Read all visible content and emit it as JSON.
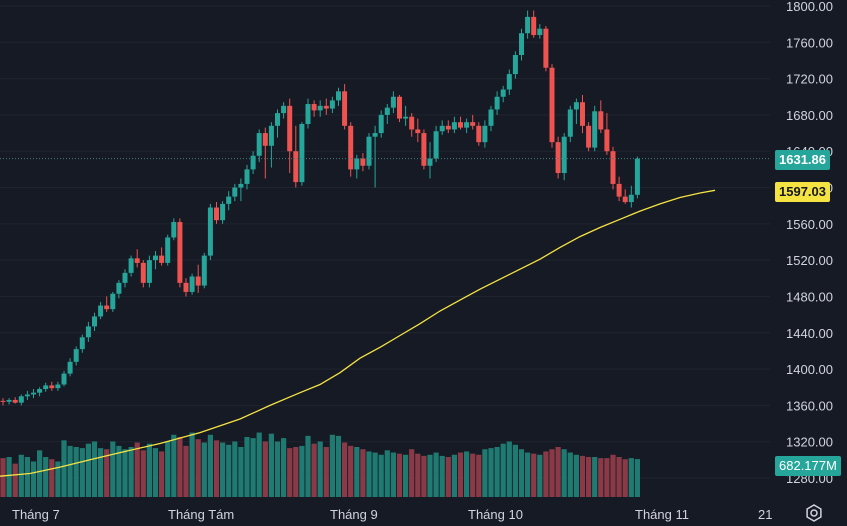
{
  "chart_data": {
    "type": "candlestick",
    "y_axis": {
      "ticks": [
        "1800.00",
        "1760.00",
        "1720.00",
        "1680.00",
        "1640.00",
        "1600.00",
        "1560.00",
        "1520.00",
        "1480.00",
        "1440.00",
        "1400.00",
        "1360.00",
        "1320.00",
        "1280.00"
      ],
      "range": [
        1270,
        1802
      ]
    },
    "x_axis": {
      "ticks": [
        "Tháng 7",
        "Tháng Tám",
        "Tháng 9",
        "Tháng 10",
        "Tháng 11",
        "21"
      ]
    },
    "last_price_label": "1631.86",
    "ma_label": "1597.03",
    "volume_label": "682.177M",
    "colors": {
      "up": "#26a69a",
      "down": "#ef5350",
      "up_vol": "#1f7a71",
      "down_vol": "#8a3a46",
      "ma": "#f5e342",
      "background": "#161a25"
    },
    "candles": [
      {
        "o": 1365,
        "h": 1368,
        "l": 1360,
        "c": 1364
      },
      {
        "o": 1364,
        "h": 1368,
        "l": 1361,
        "c": 1366
      },
      {
        "o": 1366,
        "h": 1369,
        "l": 1362,
        "c": 1363
      },
      {
        "o": 1363,
        "h": 1372,
        "l": 1360,
        "c": 1370
      },
      {
        "o": 1370,
        "h": 1376,
        "l": 1366,
        "c": 1372
      },
      {
        "o": 1372,
        "h": 1378,
        "l": 1368,
        "c": 1374
      },
      {
        "o": 1374,
        "h": 1380,
        "l": 1370,
        "c": 1378
      },
      {
        "o": 1378,
        "h": 1385,
        "l": 1375,
        "c": 1382
      },
      {
        "o": 1382,
        "h": 1386,
        "l": 1376,
        "c": 1379
      },
      {
        "o": 1379,
        "h": 1386,
        "l": 1376,
        "c": 1383
      },
      {
        "o": 1383,
        "h": 1398,
        "l": 1381,
        "c": 1395
      },
      {
        "o": 1395,
        "h": 1412,
        "l": 1392,
        "c": 1408
      },
      {
        "o": 1408,
        "h": 1425,
        "l": 1404,
        "c": 1422
      },
      {
        "o": 1422,
        "h": 1438,
        "l": 1418,
        "c": 1435
      },
      {
        "o": 1435,
        "h": 1452,
        "l": 1430,
        "c": 1447
      },
      {
        "o": 1447,
        "h": 1462,
        "l": 1442,
        "c": 1458
      },
      {
        "o": 1458,
        "h": 1474,
        "l": 1455,
        "c": 1470
      },
      {
        "o": 1470,
        "h": 1480,
        "l": 1463,
        "c": 1466
      },
      {
        "o": 1466,
        "h": 1485,
        "l": 1463,
        "c": 1483
      },
      {
        "o": 1483,
        "h": 1498,
        "l": 1478,
        "c": 1495
      },
      {
        "o": 1495,
        "h": 1510,
        "l": 1490,
        "c": 1506
      },
      {
        "o": 1506,
        "h": 1525,
        "l": 1502,
        "c": 1522
      },
      {
        "o": 1522,
        "h": 1532,
        "l": 1512,
        "c": 1517
      },
      {
        "o": 1517,
        "h": 1520,
        "l": 1490,
        "c": 1495
      },
      {
        "o": 1495,
        "h": 1525,
        "l": 1490,
        "c": 1520
      },
      {
        "o": 1520,
        "h": 1530,
        "l": 1510,
        "c": 1525
      },
      {
        "o": 1525,
        "h": 1534,
        "l": 1514,
        "c": 1517
      },
      {
        "o": 1517,
        "h": 1548,
        "l": 1514,
        "c": 1545
      },
      {
        "o": 1545,
        "h": 1566,
        "l": 1542,
        "c": 1562
      },
      {
        "o": 1562,
        "h": 1566,
        "l": 1490,
        "c": 1495
      },
      {
        "o": 1495,
        "h": 1500,
        "l": 1480,
        "c": 1485
      },
      {
        "o": 1485,
        "h": 1505,
        "l": 1482,
        "c": 1502
      },
      {
        "o": 1502,
        "h": 1515,
        "l": 1484,
        "c": 1492
      },
      {
        "o": 1492,
        "h": 1528,
        "l": 1489,
        "c": 1525
      },
      {
        "o": 1525,
        "h": 1582,
        "l": 1520,
        "c": 1578
      },
      {
        "o": 1578,
        "h": 1584,
        "l": 1560,
        "c": 1564
      },
      {
        "o": 1564,
        "h": 1585,
        "l": 1560,
        "c": 1582
      },
      {
        "o": 1582,
        "h": 1596,
        "l": 1575,
        "c": 1590
      },
      {
        "o": 1590,
        "h": 1604,
        "l": 1585,
        "c": 1600
      },
      {
        "o": 1600,
        "h": 1610,
        "l": 1585,
        "c": 1604
      },
      {
        "o": 1604,
        "h": 1625,
        "l": 1598,
        "c": 1620
      },
      {
        "o": 1620,
        "h": 1640,
        "l": 1615,
        "c": 1635
      },
      {
        "o": 1635,
        "h": 1664,
        "l": 1628,
        "c": 1660
      },
      {
        "o": 1660,
        "h": 1666,
        "l": 1610,
        "c": 1646
      },
      {
        "o": 1646,
        "h": 1672,
        "l": 1622,
        "c": 1668
      },
      {
        "o": 1668,
        "h": 1686,
        "l": 1655,
        "c": 1682
      },
      {
        "o": 1682,
        "h": 1694,
        "l": 1676,
        "c": 1690
      },
      {
        "o": 1690,
        "h": 1698,
        "l": 1616,
        "c": 1640
      },
      {
        "o": 1640,
        "h": 1668,
        "l": 1600,
        "c": 1606
      },
      {
        "o": 1606,
        "h": 1672,
        "l": 1602,
        "c": 1670
      },
      {
        "o": 1670,
        "h": 1698,
        "l": 1665,
        "c": 1692
      },
      {
        "o": 1692,
        "h": 1696,
        "l": 1678,
        "c": 1685
      },
      {
        "o": 1685,
        "h": 1696,
        "l": 1678,
        "c": 1690
      },
      {
        "o": 1690,
        "h": 1698,
        "l": 1680,
        "c": 1687
      },
      {
        "o": 1687,
        "h": 1700,
        "l": 1682,
        "c": 1696
      },
      {
        "o": 1696,
        "h": 1710,
        "l": 1690,
        "c": 1706
      },
      {
        "o": 1706,
        "h": 1714,
        "l": 1664,
        "c": 1668
      },
      {
        "o": 1668,
        "h": 1672,
        "l": 1612,
        "c": 1620
      },
      {
        "o": 1620,
        "h": 1636,
        "l": 1610,
        "c": 1632
      },
      {
        "o": 1632,
        "h": 1638,
        "l": 1618,
        "c": 1624
      },
      {
        "o": 1624,
        "h": 1660,
        "l": 1620,
        "c": 1656
      },
      {
        "o": 1656,
        "h": 1668,
        "l": 1600,
        "c": 1660
      },
      {
        "o": 1660,
        "h": 1685,
        "l": 1655,
        "c": 1680
      },
      {
        "o": 1680,
        "h": 1692,
        "l": 1670,
        "c": 1688
      },
      {
        "o": 1688,
        "h": 1706,
        "l": 1682,
        "c": 1700
      },
      {
        "o": 1700,
        "h": 1702,
        "l": 1672,
        "c": 1676
      },
      {
        "o": 1676,
        "h": 1690,
        "l": 1668,
        "c": 1678
      },
      {
        "o": 1678,
        "h": 1682,
        "l": 1656,
        "c": 1664
      },
      {
        "o": 1664,
        "h": 1676,
        "l": 1650,
        "c": 1660
      },
      {
        "o": 1660,
        "h": 1664,
        "l": 1620,
        "c": 1624
      },
      {
        "o": 1624,
        "h": 1650,
        "l": 1610,
        "c": 1632
      },
      {
        "o": 1632,
        "h": 1668,
        "l": 1628,
        "c": 1662
      },
      {
        "o": 1662,
        "h": 1674,
        "l": 1658,
        "c": 1668
      },
      {
        "o": 1668,
        "h": 1674,
        "l": 1660,
        "c": 1664
      },
      {
        "o": 1664,
        "h": 1678,
        "l": 1660,
        "c": 1672
      },
      {
        "o": 1672,
        "h": 1678,
        "l": 1664,
        "c": 1666
      },
      {
        "o": 1666,
        "h": 1676,
        "l": 1660,
        "c": 1672
      },
      {
        "o": 1672,
        "h": 1680,
        "l": 1664,
        "c": 1668
      },
      {
        "o": 1668,
        "h": 1672,
        "l": 1646,
        "c": 1650
      },
      {
        "o": 1650,
        "h": 1674,
        "l": 1644,
        "c": 1668
      },
      {
        "o": 1668,
        "h": 1690,
        "l": 1662,
        "c": 1686
      },
      {
        "o": 1686,
        "h": 1706,
        "l": 1680,
        "c": 1700
      },
      {
        "o": 1700,
        "h": 1712,
        "l": 1694,
        "c": 1708
      },
      {
        "o": 1708,
        "h": 1730,
        "l": 1702,
        "c": 1725
      },
      {
        "o": 1725,
        "h": 1750,
        "l": 1720,
        "c": 1746
      },
      {
        "o": 1746,
        "h": 1775,
        "l": 1740,
        "c": 1770
      },
      {
        "o": 1770,
        "h": 1795,
        "l": 1764,
        "c": 1788
      },
      {
        "o": 1788,
        "h": 1795,
        "l": 1765,
        "c": 1768
      },
      {
        "o": 1768,
        "h": 1780,
        "l": 1764,
        "c": 1775
      },
      {
        "o": 1775,
        "h": 1778,
        "l": 1728,
        "c": 1732
      },
      {
        "o": 1732,
        "h": 1736,
        "l": 1644,
        "c": 1650
      },
      {
        "o": 1650,
        "h": 1656,
        "l": 1610,
        "c": 1616
      },
      {
        "o": 1616,
        "h": 1660,
        "l": 1608,
        "c": 1656
      },
      {
        "o": 1656,
        "h": 1690,
        "l": 1650,
        "c": 1686
      },
      {
        "o": 1686,
        "h": 1698,
        "l": 1670,
        "c": 1694
      },
      {
        "o": 1694,
        "h": 1702,
        "l": 1660,
        "c": 1668
      },
      {
        "o": 1668,
        "h": 1672,
        "l": 1640,
        "c": 1644
      },
      {
        "o": 1644,
        "h": 1690,
        "l": 1640,
        "c": 1684
      },
      {
        "o": 1684,
        "h": 1696,
        "l": 1660,
        "c": 1664
      },
      {
        "o": 1664,
        "h": 1682,
        "l": 1636,
        "c": 1640
      },
      {
        "o": 1640,
        "h": 1645,
        "l": 1598,
        "c": 1604
      },
      {
        "o": 1604,
        "h": 1612,
        "l": 1585,
        "c": 1590
      },
      {
        "o": 1590,
        "h": 1598,
        "l": 1582,
        "c": 1584
      },
      {
        "o": 1584,
        "h": 1602,
        "l": 1578,
        "c": 1592
      },
      {
        "o": 1592,
        "h": 1634,
        "l": 1588,
        "c": 1631.86
      }
    ],
    "volume_scale_M": 1800,
    "volumes_M": [
      700,
      720,
      600,
      760,
      720,
      640,
      840,
      720,
      680,
      640,
      1020,
      920,
      900,
      880,
      960,
      1000,
      880,
      860,
      1000,
      920,
      860,
      900,
      980,
      840,
      960,
      880,
      820,
      1000,
      1120,
      1080,
      920,
      1160,
      1040,
      980,
      1120,
      1020,
      980,
      940,
      1000,
      900,
      1080,
      1060,
      1160,
      1000,
      1140,
      1000,
      1060,
      880,
      900,
      920,
      1100,
      960,
      1000,
      900,
      1120,
      1100,
      980,
      920,
      900,
      860,
      820,
      800,
      760,
      840,
      800,
      780,
      760,
      860,
      780,
      740,
      760,
      800,
      740,
      720,
      760,
      800,
      820,
      780,
      760,
      860,
      880,
      900,
      960,
      1000,
      940,
      860,
      800,
      780,
      760,
      820,
      860,
      900,
      860,
      800,
      760,
      740,
      720,
      720,
      700,
      700,
      760,
      720,
      680,
      700,
      682.177
    ],
    "ma": [
      [
        0,
        1282
      ],
      [
        30,
        1285
      ],
      [
        60,
        1292
      ],
      [
        90,
        1300
      ],
      [
        120,
        1308
      ],
      [
        160,
        1318
      ],
      [
        200,
        1330
      ],
      [
        240,
        1345
      ],
      [
        270,
        1360
      ],
      [
        300,
        1374
      ],
      [
        320,
        1383
      ],
      [
        340,
        1396
      ],
      [
        360,
        1412
      ],
      [
        380,
        1424
      ],
      [
        400,
        1437
      ],
      [
        420,
        1450
      ],
      [
        440,
        1464
      ],
      [
        460,
        1476
      ],
      [
        480,
        1488
      ],
      [
        500,
        1499
      ],
      [
        520,
        1510
      ],
      [
        540,
        1521
      ],
      [
        560,
        1534
      ],
      [
        580,
        1546
      ],
      [
        600,
        1556
      ],
      [
        620,
        1565
      ],
      [
        640,
        1574
      ],
      [
        660,
        1582
      ],
      [
        680,
        1589
      ],
      [
        700,
        1594
      ],
      [
        715,
        1597
      ]
    ]
  }
}
